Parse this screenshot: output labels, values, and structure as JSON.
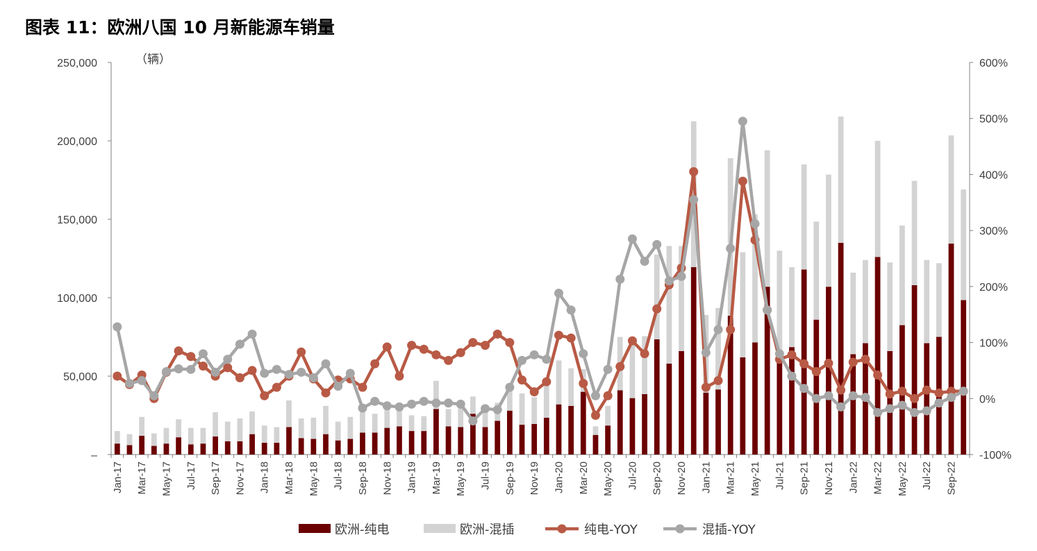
{
  "chart_data": {
    "type": "bar",
    "title": "图表 11：欧洲八国 10 月新能源车销量",
    "y_unit": "（辆）",
    "ylim": [
      0,
      250000
    ],
    "y2lim": [
      -1.0,
      6.0
    ],
    "y_ticks": [
      "–",
      "50,000",
      "100,000",
      "150,000",
      "200,000",
      "250,000"
    ],
    "y2_ticks": [
      "-100%",
      "0%",
      "100%",
      "200%",
      "300%",
      "400%",
      "500%",
      "600%"
    ],
    "grid": false,
    "legend_position": "bottom",
    "categories": [
      "Jan-17",
      "Feb-17",
      "Mar-17",
      "Apr-17",
      "May-17",
      "Jun-17",
      "Jul-17",
      "Aug-17",
      "Sep-17",
      "Oct-17",
      "Nov-17",
      "Dec-17",
      "Jan-18",
      "Feb-18",
      "Mar-18",
      "Apr-18",
      "May-18",
      "Jun-18",
      "Jul-18",
      "Aug-18",
      "Sep-18",
      "Oct-18",
      "Nov-18",
      "Dec-18",
      "Jan-19",
      "Feb-19",
      "Mar-19",
      "Apr-19",
      "May-19",
      "Jun-19",
      "Jul-19",
      "Aug-19",
      "Sep-19",
      "Oct-19",
      "Nov-19",
      "Dec-19",
      "Jan-20",
      "Feb-20",
      "Mar-20",
      "Apr-20",
      "May-20",
      "Jun-20",
      "Jul-20",
      "Aug-20",
      "Sep-20",
      "Oct-20",
      "Nov-20",
      "Dec-20",
      "Jan-21",
      "Feb-21",
      "Mar-21",
      "Apr-21",
      "May-21",
      "Jun-21",
      "Jul-21",
      "Aug-21",
      "Sep-21",
      "Oct-21",
      "Nov-21",
      "Dec-21",
      "Jan-22",
      "Feb-22",
      "Mar-22",
      "Apr-22",
      "May-22",
      "Jun-22",
      "Jul-22",
      "Aug-22",
      "Sep-22",
      "Oct-22"
    ],
    "x_tick_labels": [
      "Jan-17",
      "Mar-17",
      "May-17",
      "Jul-17",
      "Sep-17",
      "Nov-17",
      "Jan-18",
      "Mar-18",
      "May-18",
      "Jul-18",
      "Sep-18",
      "Nov-18",
      "Jan-19",
      "Mar-19",
      "May-19",
      "Jul-19",
      "Sep-19",
      "Nov-19",
      "Jan-20",
      "Mar-20",
      "May-20",
      "Jul-20",
      "Sep-20",
      "Nov-20",
      "Jan-21",
      "Mar-21",
      "May-21",
      "Jul-21",
      "Sep-21",
      "Nov-21",
      "Jan-22",
      "Mar-22",
      "May-22",
      "Jul-22",
      "Sep-22"
    ],
    "series": [
      {
        "name": "欧洲-纯电",
        "type": "bar",
        "axis": "left",
        "color": "#6b0000",
        "values": [
          7000,
          6000,
          12000,
          5500,
          7000,
          11000,
          6500,
          7000,
          11500,
          8500,
          8500,
          13000,
          7500,
          7500,
          17500,
          10500,
          10000,
          13000,
          9000,
          10000,
          14000,
          14000,
          17000,
          18000,
          15000,
          15000,
          29000,
          18000,
          17500,
          26000,
          17500,
          21500,
          28000,
          19000,
          19500,
          23500,
          32000,
          31000,
          40000,
          12500,
          18500,
          41000,
          36000,
          38500,
          73500,
          58000,
          66000,
          119500,
          39500,
          41500,
          88500,
          62000,
          71500,
          107000,
          58500,
          68500,
          118000,
          86000,
          107000,
          135000,
          64000,
          71000,
          126000,
          66000,
          82500,
          108000,
          71000,
          75000,
          134500,
          98500
        ]
      },
      {
        "name": "欧洲-混插",
        "type": "bar",
        "axis": "left",
        "color": "#d3d3d3",
        "values": [
          8000,
          7000,
          12000,
          8000,
          10000,
          11500,
          10500,
          10000,
          15500,
          12500,
          14500,
          14500,
          11000,
          10000,
          17000,
          12500,
          13500,
          18000,
          12000,
          14000,
          15500,
          12000,
          13500,
          12000,
          10000,
          9500,
          18000,
          11000,
          12000,
          11000,
          11000,
          11500,
          13000,
          20000,
          17000,
          25000,
          28000,
          24000,
          14500,
          5500,
          12500,
          34000,
          39000,
          37000,
          54000,
          75000,
          67000,
          93000,
          49500,
          52000,
          100500,
          67000,
          81500,
          87000,
          71500,
          51000,
          67000,
          62500,
          71500,
          80500,
          52000,
          53000,
          74000,
          56500,
          63500,
          66500,
          53000,
          47000,
          69000,
          70500
        ]
      },
      {
        "name": "纯电-YOY",
        "type": "line",
        "axis": "right",
        "color": "#b85a45",
        "values": [
          0.4,
          0.25,
          0.42,
          0.0,
          0.47,
          0.85,
          0.75,
          0.58,
          0.4,
          0.55,
          0.37,
          0.5,
          0.05,
          0.2,
          0.4,
          0.83,
          0.35,
          0.1,
          0.33,
          0.35,
          0.2,
          0.62,
          0.92,
          0.4,
          0.95,
          0.88,
          0.78,
          0.68,
          0.82,
          1.0,
          0.95,
          1.15,
          1.0,
          0.33,
          0.12,
          0.3,
          1.13,
          1.08,
          0.27,
          -0.3,
          0.05,
          0.57,
          1.03,
          0.8,
          1.6,
          2.03,
          2.33,
          4.05,
          0.2,
          0.32,
          1.23,
          3.88,
          2.83,
          1.58,
          0.7,
          0.78,
          0.62,
          0.48,
          0.63,
          0.15,
          0.65,
          0.7,
          0.42,
          0.08,
          0.13,
          0.0,
          0.15,
          0.1,
          0.13,
          0.13
        ]
      },
      {
        "name": "混插-YOY",
        "type": "line",
        "axis": "right",
        "color": "#a6a6a6",
        "values": [
          1.28,
          0.27,
          0.32,
          0.05,
          0.48,
          0.53,
          0.52,
          0.8,
          0.47,
          0.7,
          0.97,
          1.15,
          0.45,
          0.52,
          0.43,
          0.47,
          0.37,
          0.62,
          0.22,
          0.45,
          -0.17,
          -0.05,
          -0.13,
          -0.15,
          -0.1,
          -0.05,
          -0.08,
          -0.08,
          -0.1,
          -0.4,
          -0.18,
          -0.2,
          0.2,
          0.68,
          0.78,
          0.7,
          1.88,
          1.58,
          0.8,
          0.05,
          0.52,
          2.13,
          2.85,
          2.45,
          2.75,
          2.1,
          2.18,
          3.55,
          0.82,
          1.23,
          2.68,
          4.95,
          3.12,
          1.58,
          0.8,
          0.4,
          0.18,
          0.0,
          0.05,
          -0.15,
          0.05,
          0.02,
          -0.25,
          -0.18,
          -0.12,
          -0.25,
          -0.22,
          -0.08,
          0.02,
          0.13
        ]
      }
    ]
  }
}
